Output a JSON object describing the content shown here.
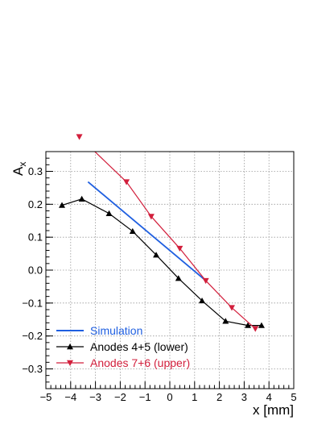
{
  "chart_data": {
    "type": "line",
    "xlabel": "x [mm]",
    "ylabel": "A",
    "ylabel_sub": "x",
    "xlim": [
      -5,
      5
    ],
    "ylim": [
      -0.36,
      0.36
    ],
    "xticks": [
      -5,
      -4,
      -3,
      -2,
      -1,
      0,
      1,
      2,
      3,
      4,
      5
    ],
    "xtick_labels": [
      "−5",
      "−4",
      "−3",
      "−2",
      "−1",
      "0",
      "1",
      "2",
      "3",
      "4",
      "5"
    ],
    "yticks": [
      -0.3,
      -0.2,
      -0.1,
      0.0,
      0.1,
      0.2,
      0.3
    ],
    "ytick_labels": [
      "−0.3",
      "−0.2",
      "−0.1",
      "0.0",
      "0.1",
      "0.2",
      "0.3"
    ],
    "grid": true,
    "legend_position": "bottom-left",
    "series": [
      {
        "name": "Simulation",
        "color": "#1f5fe0",
        "marker": "none",
        "x": [
          -3.3,
          1.5
        ],
        "y": [
          0.268,
          -0.035
        ]
      },
      {
        "name": "Anodes 4+5 (lower)",
        "color": "#000000",
        "marker": "triangle-up",
        "x": [
          -4.35,
          -3.55,
          -2.45,
          -1.5,
          -0.55,
          0.35,
          1.3,
          2.25,
          3.15,
          3.7
        ],
        "y": [
          0.197,
          0.216,
          0.172,
          0.118,
          0.046,
          -0.025,
          -0.093,
          -0.155,
          -0.168,
          -0.168
        ]
      },
      {
        "name": "Anodes 7+6 (upper)",
        "color": "#d21f3c",
        "marker": "triangle-down",
        "x": [
          -3.65,
          -1.75,
          -0.75,
          0.4,
          1.45,
          2.5,
          3.45
        ],
        "y": [
          0.405,
          0.268,
          0.163,
          0.066,
          -0.032,
          -0.114,
          -0.178
        ]
      }
    ]
  }
}
